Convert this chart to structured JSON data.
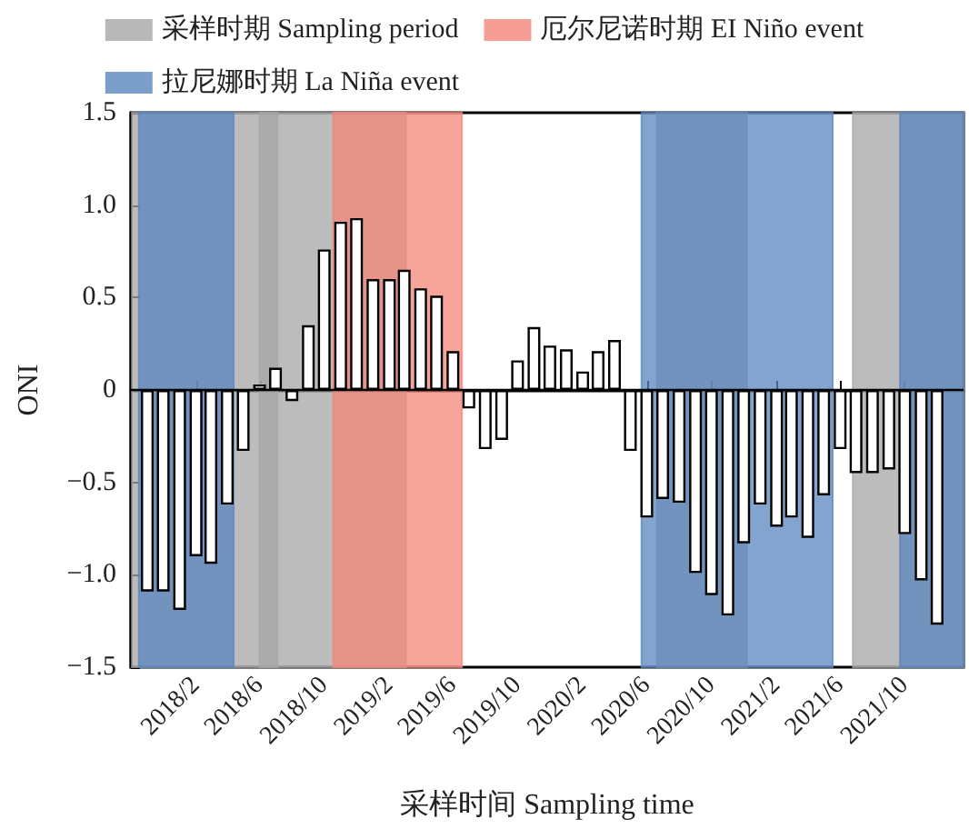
{
  "chart_data": {
    "type": "bar",
    "xlabel": "采样时间 Sampling time",
    "ylabel": "ONI",
    "x": [
      "2017-11",
      "2017-12",
      "2018-01",
      "2018-02",
      "2018-03",
      "2018-04",
      "2018-05",
      "2018-06",
      "2018-07",
      "2018-08",
      "2018-09",
      "2018-10",
      "2018-11",
      "2018-12",
      "2019-01",
      "2019-02",
      "2019-03",
      "2019-04",
      "2019-05",
      "2019-06",
      "2019-07",
      "2019-08",
      "2019-09",
      "2019-10",
      "2019-11",
      "2019-12",
      "2020-01",
      "2020-02",
      "2020-03",
      "2020-04",
      "2020-05",
      "2020-06",
      "2020-07",
      "2020-08",
      "2020-09",
      "2020-10",
      "2020-11",
      "2020-12",
      "2021-01",
      "2021-02",
      "2021-03",
      "2021-04",
      "2021-05",
      "2021-06",
      "2021-07",
      "2021-08",
      "2021-09",
      "2021-10",
      "2021-11",
      "2021-12"
    ],
    "series": [
      {
        "color": "#ffffff",
        "values": [
          -1.09,
          -1.09,
          -1.19,
          -0.9,
          -0.94,
          -0.62,
          -0.33,
          0.03,
          0.12,
          -0.06,
          0.35,
          0.76,
          0.91,
          0.93,
          0.6,
          0.6,
          0.65,
          0.55,
          0.51,
          0.21,
          -0.1,
          -0.32,
          -0.27,
          0.16,
          0.34,
          0.24,
          0.22,
          0.1,
          0.21,
          0.27,
          -0.33,
          -0.69,
          -0.59,
          -0.61,
          -0.99,
          -1.11,
          -1.22,
          -0.83,
          -0.62,
          -0.74,
          -0.69,
          -0.8,
          -0.57,
          -0.32,
          -0.45,
          -0.45,
          -0.43,
          -0.78,
          -1.03,
          -1.27
        ]
      }
    ],
    "xlim": [
      "2017-10-01",
      "2022-01-20"
    ],
    "xticks": [
      {
        "value": "2018-02",
        "label": "2018/2"
      },
      {
        "value": "2018-06",
        "label": "2018/6"
      },
      {
        "value": "2018-10",
        "label": "2018/10"
      },
      {
        "value": "2019-02",
        "label": "2019/2"
      },
      {
        "value": "2019-06",
        "label": "2019/6"
      },
      {
        "value": "2019-10",
        "label": "2019/10"
      },
      {
        "value": "2020-02",
        "label": "2020/2"
      },
      {
        "value": "2020-06",
        "label": "2020/6"
      },
      {
        "value": "2020-10",
        "label": "2020/10"
      },
      {
        "value": "2021-02",
        "label": "2021/2"
      },
      {
        "value": "2021-06",
        "label": "2021/6"
      },
      {
        "value": "2021-10",
        "label": "2021/10"
      }
    ],
    "ylim": [
      -1.5,
      1.5
    ],
    "yticks": [
      {
        "value": -1.5,
        "label": "−1.5"
      },
      {
        "value": -1,
        "label": "−1.0"
      },
      {
        "value": -0.5,
        "label": "−0.5"
      },
      0,
      0.5,
      {
        "value": 1,
        "label": "1.0"
      },
      1.5
    ],
    "ref_lines": [
      {
        "axis": "y",
        "value": 0,
        "color": "#000000"
      }
    ],
    "bands": [
      {
        "axis": "x",
        "from": "2017-10-03",
        "to": "2018-07-05",
        "label": "采样时期 Sampling period",
        "color": "#a6a6a6"
      },
      {
        "axis": "x",
        "from": "2018-06-01",
        "to": "2019-03-04",
        "color": "#a6a6a6"
      },
      {
        "axis": "x",
        "from": "2020-06-20",
        "to": "2020-12-07",
        "color": "#a6a6a6"
      },
      {
        "axis": "x",
        "from": "2021-06-25",
        "to": "2022-01-20",
        "color": "#a6a6a6"
      },
      {
        "axis": "x",
        "from": "2018-10-18",
        "to": "2019-06-18",
        "label": "厄尔尼诺时期 EI Niño event",
        "color": "#f4857a"
      },
      {
        "axis": "x",
        "from": "2017-10-16",
        "to": "2018-04-13",
        "label": "拉尼娜时期 La Niña event",
        "color": "#5a86bd"
      },
      {
        "axis": "x",
        "from": "2020-05-22",
        "to": "2021-05-18",
        "color": "#5a86bd"
      },
      {
        "axis": "x",
        "from": "2021-09-22",
        "to": "2022-01-20",
        "color": "#5a86bd"
      }
    ],
    "legend": "top",
    "grid": false
  }
}
